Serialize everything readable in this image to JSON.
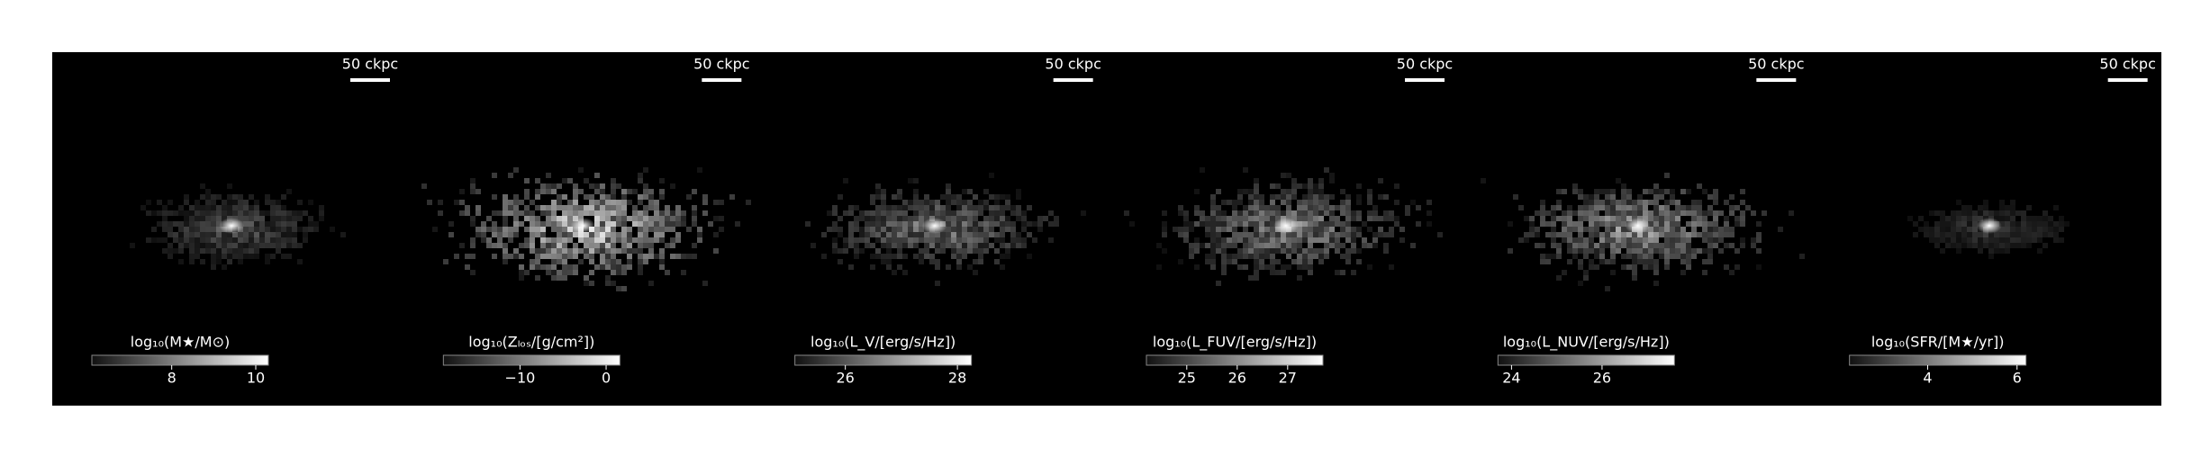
{
  "chart_data": [
    {
      "type": "image",
      "scale_bar_label": "50 ckpc",
      "colorbar_label": "log₁₀(M★/M⊙)",
      "clim": [
        6.1,
        10.3
      ],
      "cticks": [
        8,
        10
      ]
    },
    {
      "type": "image",
      "scale_bar_label": "50 ckpc",
      "colorbar_label": "log₁₀(Zₗₒₛ/[g/cm²])",
      "clim": [
        -18.9,
        1.6
      ],
      "cticks": [
        {
          "value": -10,
          "label": "−10"
        },
        0
      ]
    },
    {
      "type": "image",
      "scale_bar_label": "50 ckpc",
      "colorbar_label": "log₁₀(L_V/[erg/s/Hz])",
      "clim": [
        25.1,
        28.25
      ],
      "cticks": [
        26,
        28
      ]
    },
    {
      "type": "image",
      "scale_bar_label": "50 ckpc",
      "colorbar_label": "log₁₀(L_FUV/[erg/s/Hz])",
      "clim": [
        24.2,
        27.7
      ],
      "cticks": [
        25,
        26,
        27
      ]
    },
    {
      "type": "image",
      "scale_bar_label": "50 ckpc",
      "colorbar_label": "log₁₀(L_NUV/[erg/s/Hz])",
      "clim": [
        23.7,
        27.6
      ],
      "cticks": [
        24,
        26
      ]
    },
    {
      "type": "image",
      "scale_bar_label": "50 ckpc",
      "colorbar_label": "log₁₀(SFR/[M★/yr])",
      "clim": [
        2.25,
        6.2
      ],
      "cticks": [
        4,
        6
      ]
    }
  ]
}
